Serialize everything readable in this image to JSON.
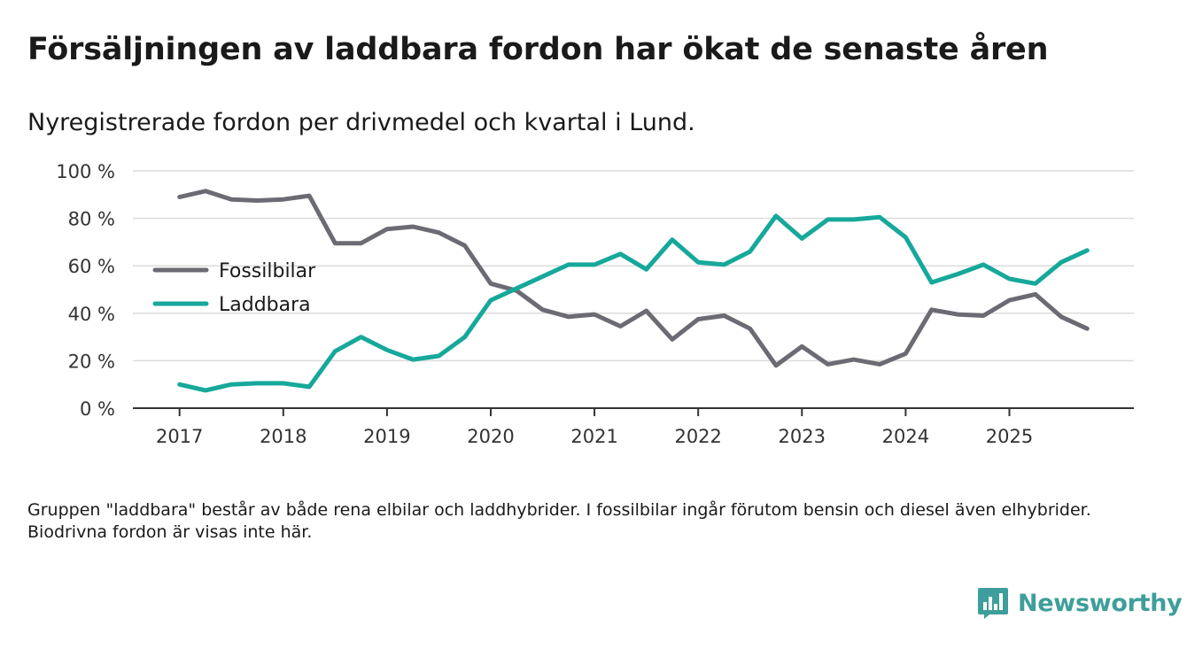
{
  "header": {
    "title": "Försäljningen av laddbara fordon har ökat de senaste åren",
    "subtitle": "Nyregistrerade fordon per drivmedel och kvartal i Lund."
  },
  "footnote": "Gruppen \"laddbara\" består av både rena elbilar och laddhybrider. I fossilbilar ingår förutom bensin och diesel även elhybrider. Biodrivna fordon är visas inte här.",
  "brand": {
    "name": "Newsworthy",
    "color": "#3e9e9b"
  },
  "chart_data": {
    "type": "line",
    "title": "Försäljningen av laddbara fordon har ökat de senaste åren",
    "subtitle": "Nyregistrerade fordon per drivmedel och kvartal i Lund.",
    "xlabel": "",
    "ylabel": "",
    "ylim": [
      0,
      100
    ],
    "xlim": [
      2016.55,
      2026.2
    ],
    "y_ticks": [
      0,
      20,
      40,
      60,
      80,
      100
    ],
    "y_tick_labels": [
      "0 %",
      "20 %",
      "40 %",
      "60 %",
      "80 %",
      "100 %"
    ],
    "x_ticks": [
      2017,
      2018,
      2019,
      2020,
      2021,
      2022,
      2023,
      2024,
      2025
    ],
    "x_tick_labels": [
      "2017",
      "2018",
      "2019",
      "2020",
      "2021",
      "2022",
      "2023",
      "2024",
      "2025"
    ],
    "grid": true,
    "legend_position": "left-middle",
    "x": [
      2017,
      2017.25,
      2017.5,
      2017.75,
      2018,
      2018.25,
      2018.5,
      2018.75,
      2019,
      2019.25,
      2019.5,
      2019.75,
      2020,
      2020.25,
      2020.5,
      2020.75,
      2021,
      2021.25,
      2021.5,
      2021.75,
      2022,
      2022.25,
      2022.5,
      2022.75,
      2023,
      2023.25,
      2023.5,
      2023.75,
      2024,
      2024.25,
      2024.5,
      2024.75,
      2025,
      2025.25,
      2025.5,
      2025.75
    ],
    "series": [
      {
        "name": "Fossilbilar",
        "color": "#6c6b74",
        "values": [
          89,
          91.5,
          88,
          87.5,
          88,
          89.5,
          69.5,
          69.5,
          75.5,
          76.5,
          74,
          68.5,
          52.5,
          49.5,
          41.5,
          38.5,
          39.5,
          34.5,
          41,
          29,
          37.5,
          39,
          33.5,
          18,
          26,
          18.5,
          20.5,
          18.5,
          23,
          41.5,
          39.5,
          39,
          45.5,
          48,
          38.5,
          33.5
        ]
      },
      {
        "name": "Laddbara",
        "color": "#16a89b",
        "values": [
          10,
          7.5,
          10,
          10.5,
          10.5,
          9,
          24,
          30,
          24.5,
          20.5,
          22,
          30,
          45.5,
          50.5,
          55.5,
          60.5,
          60.5,
          65,
          58.5,
          71,
          61.5,
          60.5,
          66,
          81,
          71.5,
          79.5,
          79.5,
          80.5,
          72,
          53,
          56.5,
          60.5,
          54.5,
          52.5,
          61.5,
          66.5
        ]
      }
    ]
  }
}
